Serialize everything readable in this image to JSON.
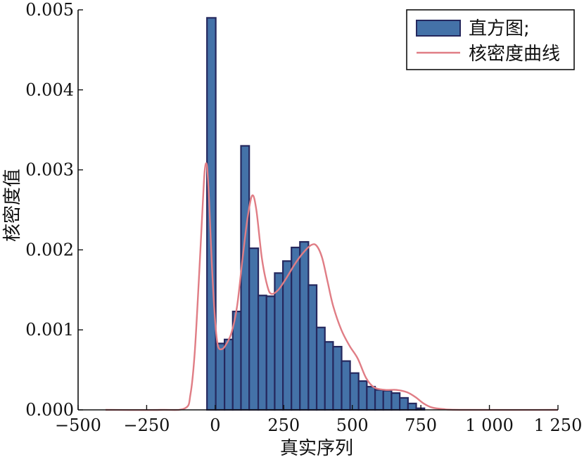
{
  "chart_data": {
    "type": "bar",
    "xlabel": "真实序列",
    "ylabel": "核密度值",
    "xlim": [
      -500,
      1250
    ],
    "ylim": [
      0,
      0.005
    ],
    "x_ticks": [
      -500,
      -250,
      0,
      250,
      500,
      750,
      1000,
      1250
    ],
    "x_tick_labels": [
      "−500",
      "−250",
      "0",
      "250",
      "500",
      "750",
      "1 000",
      "1 250"
    ],
    "y_ticks": [
      0,
      0.001,
      0.002,
      0.003,
      0.004,
      0.005
    ],
    "y_tick_labels": [
      "0.000",
      "0.001",
      "0.002",
      "0.003",
      "0.004",
      "0.005"
    ],
    "legend_position": "top-right",
    "grid": false,
    "histogram": {
      "name": "直方图;",
      "color": "#4472a8",
      "edge_color": "#25285e",
      "bin_edges": [
        -30,
        2,
        34,
        64,
        94,
        124,
        157,
        187,
        217,
        247,
        278,
        309,
        340,
        370,
        400,
        430,
        461,
        492,
        523,
        553,
        583,
        613,
        643,
        673,
        703,
        733,
        763
      ],
      "density": [
        0.0049,
        0.00083,
        0.00088,
        0.00123,
        0.0033,
        0.00202,
        0.00143,
        0.00142,
        0.00171,
        0.00186,
        0.00203,
        0.0021,
        0.00156,
        0.00103,
        0.00085,
        0.00079,
        0.00061,
        0.00046,
        0.00036,
        0.00029,
        0.00025,
        0.00024,
        0.00021,
        0.00015,
        8e-05,
        2e-05
      ]
    },
    "kde": {
      "name": "核密度曲线",
      "color": "#e07d85",
      "x": [
        -400,
        -200,
        -110,
        -90,
        -75,
        -60,
        -45,
        -38,
        -30,
        -22,
        -12,
        0,
        10,
        25,
        40,
        60,
        80,
        100,
        118,
        135,
        150,
        170,
        190,
        205,
        230,
        260,
        290,
        320,
        350,
        370,
        390,
        410,
        430,
        460,
        490,
        520,
        550,
        580,
        620,
        660,
        700,
        730,
        760,
        790,
        830,
        900,
        1250
      ],
      "y": [
        0,
        0,
        2e-05,
        0.0002,
        0.0007,
        0.0016,
        0.0026,
        0.003,
        0.00305,
        0.0026,
        0.0018,
        0.0011,
        0.0008,
        0.00076,
        0.00082,
        0.00097,
        0.0013,
        0.0019,
        0.0024,
        0.00268,
        0.0025,
        0.0019,
        0.00155,
        0.00145,
        0.0015,
        0.00165,
        0.00182,
        0.00196,
        0.00206,
        0.00205,
        0.0019,
        0.0016,
        0.0013,
        0.001,
        0.0008,
        0.00064,
        0.0004,
        0.00028,
        0.00025,
        0.00025,
        0.00022,
        0.00016,
        8e-05,
        3e-05,
        1e-05,
        0,
        0
      ]
    }
  }
}
